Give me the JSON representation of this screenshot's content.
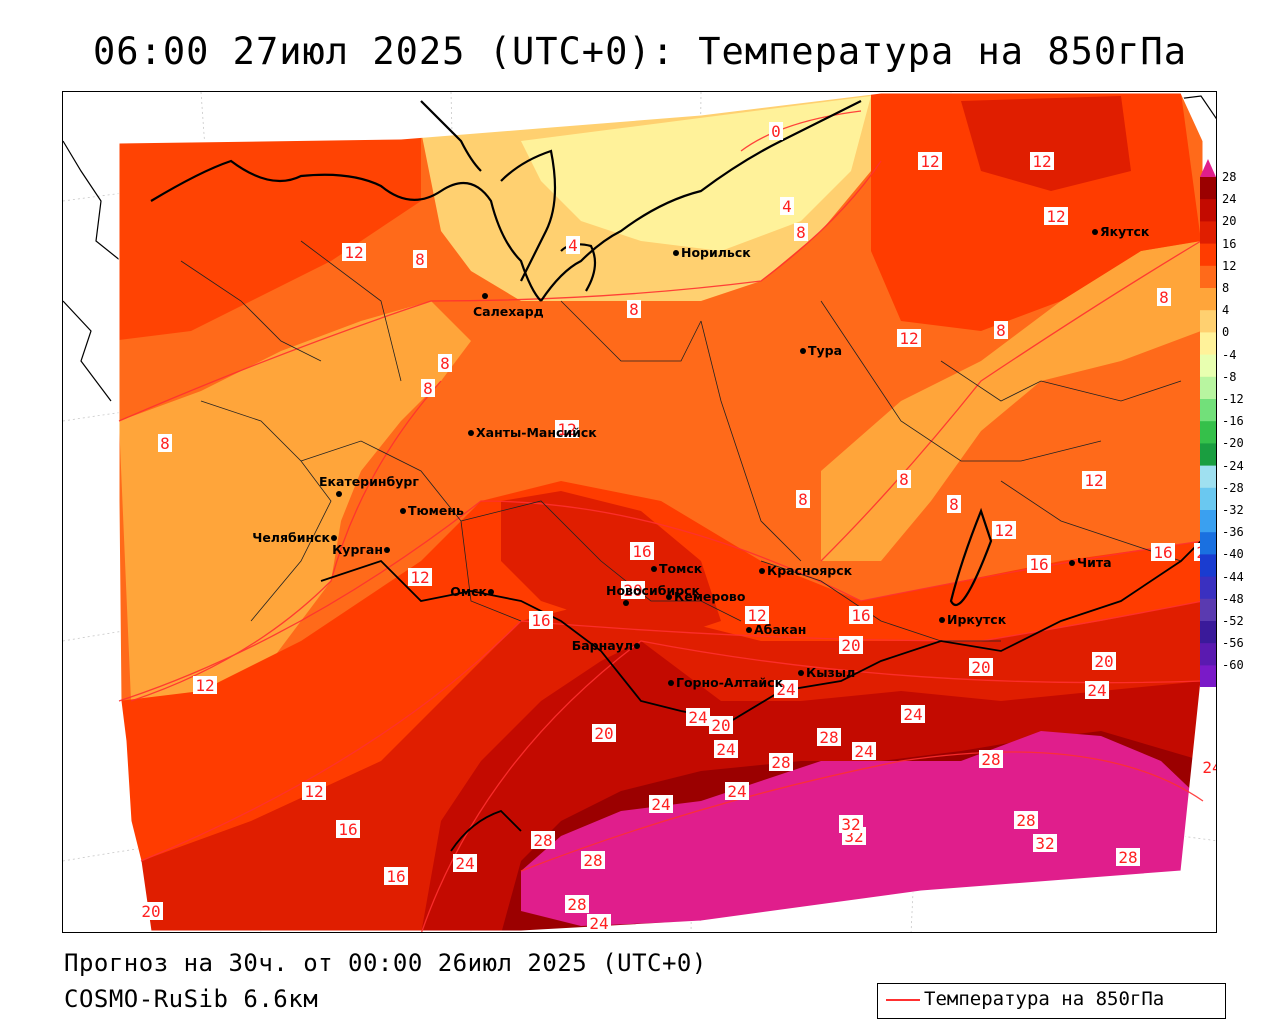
{
  "title": "06:00 27июл 2025 (UTC+0): Температура на 850гПа",
  "forecast_text": "Прогноз на 30ч. от 00:00 26июл 2025 (UTC+0)",
  "model_text": "COSMO-RuSib 6.6км",
  "legend": {
    "label": "Температура на 850гПа",
    "color": "#ff3030"
  },
  "colorbar": {
    "labels": [
      "28",
      "24",
      "20",
      "16",
      "12",
      "8",
      "4",
      "0",
      "-4",
      "-8",
      "-12",
      "-16",
      "-20",
      "-24",
      "-28",
      "-32",
      "-36",
      "-40",
      "-44",
      "-48",
      "-52",
      "-56",
      "-60"
    ],
    "colors": [
      "#9b0000",
      "#c30a00",
      "#e01e00",
      "#ff3c00",
      "#ff6a1a",
      "#ffa53a",
      "#ffd070",
      "#fff29a",
      "#e8ffb0",
      "#b8f5a0",
      "#72e07a",
      "#35c04a",
      "#1a9e40",
      "#9fe0f0",
      "#6ac8f0",
      "#3aa0f0",
      "#1a70e0",
      "#1a3cd0",
      "#3a30c0",
      "#5a3ab0",
      "#3a1a9a",
      "#5a1ab0",
      "#7a1ac8"
    ],
    "top_arrow_color": "#e01e8c",
    "bottom_arrow_color": "#8a1ad0"
  },
  "cities": [
    {
      "name": "Норильск"
    },
    {
      "name": "Салехард"
    },
    {
      "name": "Якутск"
    },
    {
      "name": "Тура"
    },
    {
      "name": "Ханты-Мансийск"
    },
    {
      "name": "Екатеринбург"
    },
    {
      "name": "Тюмень"
    },
    {
      "name": "Челябинск"
    },
    {
      "name": "Курган"
    },
    {
      "name": "Омск"
    },
    {
      "name": "Новосибирск"
    },
    {
      "name": "Томск"
    },
    {
      "name": "Кемерово"
    },
    {
      "name": "Красноярск"
    },
    {
      "name": "Барнаул"
    },
    {
      "name": "Абакан"
    },
    {
      "name": "Иркутск"
    },
    {
      "name": "Чита"
    },
    {
      "name": "Кызыл"
    },
    {
      "name": "Горно-Алтайск"
    }
  ],
  "contour_labels": [
    "0",
    "4",
    "4",
    "8",
    "8",
    "8",
    "8",
    "8",
    "8",
    "8",
    "8",
    "8",
    "8",
    "8",
    "12",
    "12",
    "12",
    "12",
    "12",
    "12",
    "12",
    "12",
    "12",
    "12",
    "12",
    "12",
    "16",
    "16",
    "16",
    "16",
    "16",
    "16",
    "16",
    "20",
    "20",
    "20",
    "20",
    "20",
    "20",
    "20",
    "24",
    "24",
    "24",
    "24",
    "24",
    "24",
    "24",
    "24",
    "24",
    "24",
    "24",
    "24",
    "28",
    "28",
    "28",
    "28",
    "28",
    "28",
    "28",
    "28",
    "32",
    "32",
    "32",
    "32"
  ]
}
